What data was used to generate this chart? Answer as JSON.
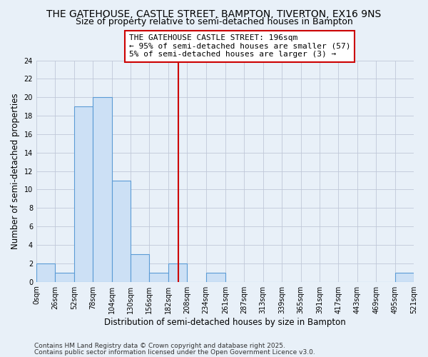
{
  "title": "THE GATEHOUSE, CASTLE STREET, BAMPTON, TIVERTON, EX16 9NS",
  "subtitle": "Size of property relative to semi-detached houses in Bampton",
  "xlabel": "Distribution of semi-detached houses by size in Bampton",
  "ylabel": "Number of semi-detached properties",
  "bin_edges": [
    0,
    26,
    52,
    78,
    104,
    130,
    156,
    182,
    208,
    234,
    261,
    287,
    313,
    339,
    365,
    391,
    417,
    443,
    469,
    495,
    521
  ],
  "bin_counts": [
    2,
    1,
    19,
    20,
    11,
    3,
    1,
    2,
    0,
    1,
    0,
    0,
    0,
    0,
    0,
    0,
    0,
    0,
    0,
    1
  ],
  "bar_facecolor": "#cce0f5",
  "bar_edgecolor": "#5b9bd5",
  "vline_x": 196,
  "vline_color": "#cc0000",
  "annotation_title": "THE GATEHOUSE CASTLE STREET: 196sqm",
  "annotation_line1": "← 95% of semi-detached houses are smaller (57)",
  "annotation_line2": "5% of semi-detached houses are larger (3) →",
  "annotation_box_facecolor": "#ffffff",
  "annotation_box_edgecolor": "#cc0000",
  "ylim": [
    0,
    24
  ],
  "yticks": [
    0,
    2,
    4,
    6,
    8,
    10,
    12,
    14,
    16,
    18,
    20,
    22,
    24
  ],
  "tick_labels": [
    "0sqm",
    "26sqm",
    "52sqm",
    "78sqm",
    "104sqm",
    "130sqm",
    "156sqm",
    "182sqm",
    "208sqm",
    "234sqm",
    "261sqm",
    "287sqm",
    "313sqm",
    "339sqm",
    "365sqm",
    "391sqm",
    "417sqm",
    "443sqm",
    "469sqm",
    "495sqm",
    "521sqm"
  ],
  "background_color": "#e8f0f8",
  "footer1": "Contains HM Land Registry data © Crown copyright and database right 2025.",
  "footer2": "Contains public sector information licensed under the Open Government Licence v3.0.",
  "title_fontsize": 10,
  "subtitle_fontsize": 9,
  "axis_label_fontsize": 8.5,
  "tick_fontsize": 7,
  "annotation_fontsize": 8,
  "footer_fontsize": 6.5
}
